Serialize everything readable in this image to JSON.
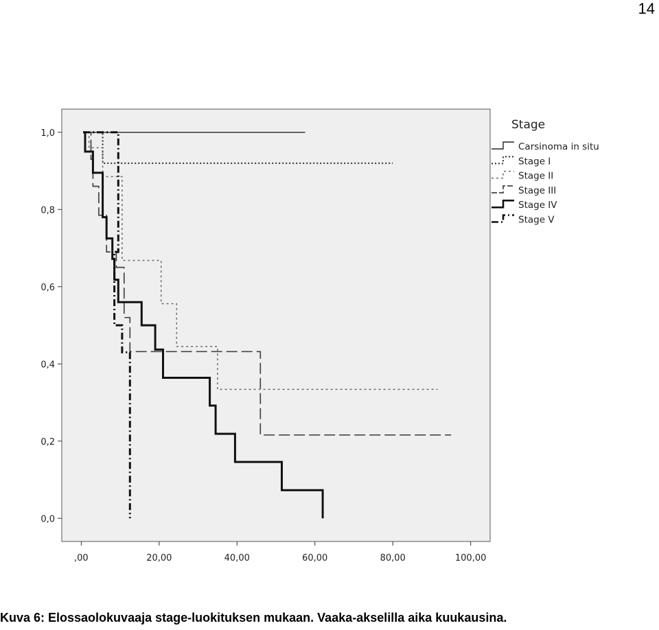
{
  "page_number": "14",
  "caption": "Kuva 6: Elossaolokuvaaja stage-luokituksen mukaan. Vaaka-akselilla aika kuukausina.",
  "chart_data": {
    "type": "line",
    "title": "",
    "xlabel": "",
    "ylabel": "",
    "xlim": [
      -5,
      105
    ],
    "ylim": [
      -0.06,
      1.06
    ],
    "x_ticks": [
      0,
      20,
      40,
      60,
      80,
      100
    ],
    "x_tick_labels": [
      ",00",
      "20,00",
      "40,00",
      "60,00",
      "80,00",
      "100,00"
    ],
    "y_ticks": [
      0,
      0.2,
      0.4,
      0.6,
      0.8,
      1.0
    ],
    "y_tick_labels": [
      "0,0",
      "0,2",
      "0,4",
      "0,6",
      "0,8",
      "1,0"
    ],
    "grid": false,
    "plot_background": "#efefef",
    "legend_title": "Stage",
    "legend_position": "right",
    "series": [
      {
        "name": "Carsinoma in situ",
        "style": "solid-thin",
        "color": "#222222",
        "points": [
          [
            0.5,
            1.0
          ],
          [
            57.5,
            1.0
          ]
        ]
      },
      {
        "name": "Stage I",
        "style": "dotted",
        "color": "#333333",
        "points": [
          [
            0.5,
            1.0
          ],
          [
            5.5,
            1.0
          ],
          [
            5.5,
            0.92
          ],
          [
            80.0,
            0.92
          ]
        ]
      },
      {
        "name": "Stage II",
        "style": "dash-dot-gray",
        "color": "#6a6a6a",
        "points": [
          [
            0.5,
            1.0
          ],
          [
            2.0,
            1.0
          ],
          [
            2.0,
            0.96
          ],
          [
            5.5,
            0.96
          ],
          [
            5.5,
            0.885
          ],
          [
            10.5,
            0.885
          ],
          [
            10.5,
            0.668
          ],
          [
            20.5,
            0.668
          ],
          [
            20.5,
            0.556
          ],
          [
            24.5,
            0.556
          ],
          [
            24.5,
            0.445
          ],
          [
            35.0,
            0.445
          ],
          [
            35.0,
            0.334
          ],
          [
            91.5,
            0.334
          ]
        ]
      },
      {
        "name": "Stage III",
        "style": "long-dash",
        "color": "#444444",
        "points": [
          [
            0.5,
            1.0
          ],
          [
            2.5,
            1.0
          ],
          [
            2.5,
            0.93
          ],
          [
            3.0,
            0.93
          ],
          [
            3.0,
            0.86
          ],
          [
            4.5,
            0.86
          ],
          [
            4.5,
            0.785
          ],
          [
            6.5,
            0.785
          ],
          [
            6.5,
            0.69
          ],
          [
            9.0,
            0.69
          ],
          [
            9.0,
            0.65
          ],
          [
            11.0,
            0.65
          ],
          [
            11.0,
            0.52
          ],
          [
            12.5,
            0.52
          ],
          [
            12.5,
            0.432
          ],
          [
            46.0,
            0.432
          ],
          [
            46.0,
            0.216
          ],
          [
            95.0,
            0.216
          ]
        ]
      },
      {
        "name": "Stage IV",
        "style": "solid-thick",
        "color": "#111111",
        "points": [
          [
            0.5,
            1.0
          ],
          [
            1.0,
            1.0
          ],
          [
            1.0,
            0.95
          ],
          [
            3.0,
            0.95
          ],
          [
            3.0,
            0.895
          ],
          [
            5.5,
            0.895
          ],
          [
            5.5,
            0.78
          ],
          [
            6.5,
            0.78
          ],
          [
            6.5,
            0.725
          ],
          [
            8.0,
            0.725
          ],
          [
            8.0,
            0.672
          ],
          [
            8.5,
            0.672
          ],
          [
            8.5,
            0.618
          ],
          [
            9.5,
            0.618
          ],
          [
            9.5,
            0.56
          ],
          [
            15.5,
            0.56
          ],
          [
            15.5,
            0.5
          ],
          [
            19.0,
            0.5
          ],
          [
            19.0,
            0.437
          ],
          [
            21.0,
            0.437
          ],
          [
            21.0,
            0.364
          ],
          [
            33.0,
            0.364
          ],
          [
            33.0,
            0.292
          ],
          [
            34.5,
            0.292
          ],
          [
            34.5,
            0.219
          ],
          [
            39.5,
            0.219
          ],
          [
            39.5,
            0.146
          ],
          [
            51.5,
            0.146
          ],
          [
            51.5,
            0.073
          ],
          [
            62.0,
            0.073
          ],
          [
            62.0,
            0.0
          ]
        ]
      },
      {
        "name": "Stage V",
        "style": "dash-dot-thick",
        "color": "#111111",
        "points": [
          [
            0.5,
            1.0
          ],
          [
            9.5,
            1.0
          ],
          [
            9.5,
            0.69
          ],
          [
            8.5,
            0.69
          ],
          [
            8.5,
            0.5
          ],
          [
            10.5,
            0.5
          ],
          [
            10.5,
            0.43
          ],
          [
            12.5,
            0.43
          ],
          [
            12.5,
            0.0
          ]
        ]
      }
    ]
  }
}
